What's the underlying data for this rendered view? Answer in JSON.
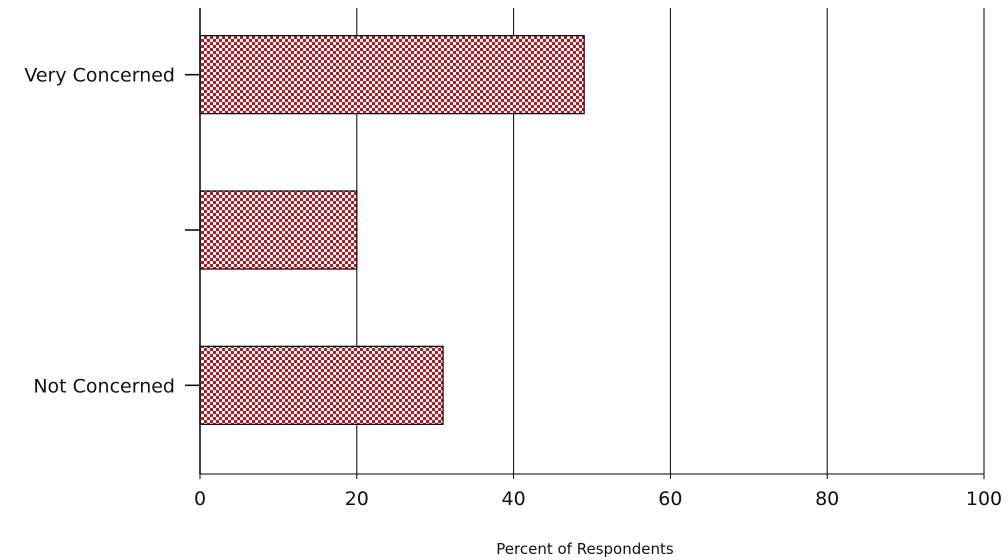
{
  "chart_data": {
    "type": "bar",
    "orientation": "horizontal",
    "categories": [
      "Very Concerned",
      "",
      "Not Concerned"
    ],
    "values": [
      49,
      20,
      31
    ],
    "xlabel": "Percent of Respondents",
    "ylabel": "",
    "xlim": [
      0,
      100
    ],
    "x_ticks": [
      0,
      20,
      40,
      60,
      80,
      100
    ],
    "grid": "vertical",
    "legend": "none",
    "bar_fill": "checkerboard",
    "bar_colors": [
      "#c0151c",
      "#ffffff"
    ],
    "bar_edge_color": "#000000"
  }
}
